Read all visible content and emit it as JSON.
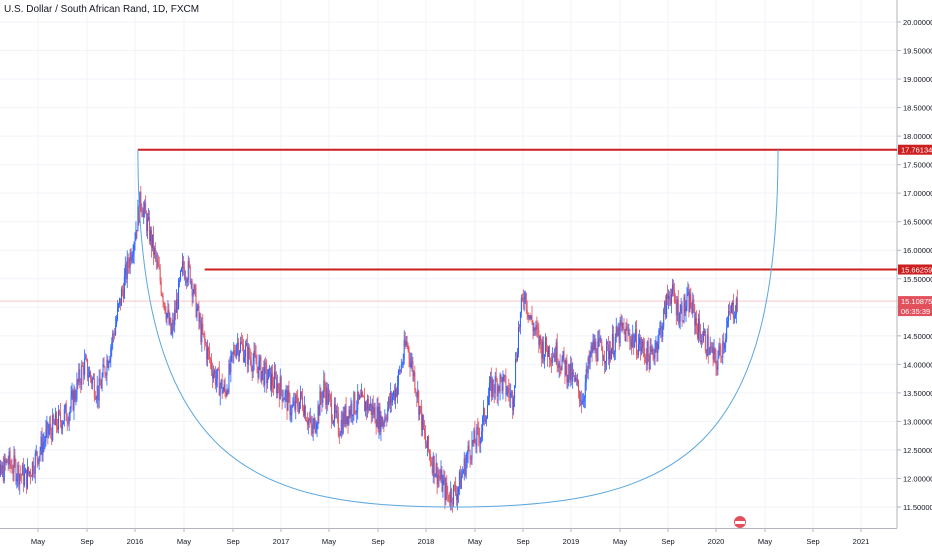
{
  "header": {
    "symbol_title": "U.S. Dollar / South African Rand, 1D, FXCM"
  },
  "chart_data": {
    "type": "candlestick",
    "title": "U.S. Dollar / South African Rand, 1D, FXCM",
    "x_ticks": [
      "May",
      "Sep",
      "2016",
      "May",
      "Sep",
      "2017",
      "May",
      "Sep",
      "2018",
      "May",
      "Sep",
      "2019",
      "May",
      "Sep",
      "2020",
      "May",
      "Sep",
      "2021"
    ],
    "y_ticks": [
      "20.00000",
      "19.50000",
      "19.00000",
      "18.50000",
      "18.00000",
      "17.50000",
      "17.00000",
      "16.50000",
      "16.00000",
      "15.50000",
      "15.00000",
      "14.50000",
      "14.00000",
      "13.50000",
      "13.00000",
      "12.50000",
      "12.00000",
      "11.50000"
    ],
    "y_values": [
      20.0,
      19.5,
      19.0,
      18.5,
      18.0,
      17.5,
      17.0,
      16.5,
      16.0,
      15.5,
      15.0,
      14.5,
      14.0,
      13.5,
      13.0,
      12.5,
      12.0,
      11.5
    ],
    "ylim": [
      11.25,
      20.25
    ],
    "price_path": [
      {
        "t": 2015.0,
        "v": 11.6
      },
      {
        "t": 2015.12,
        "v": 12.3
      },
      {
        "t": 2015.25,
        "v": 12.0
      },
      {
        "t": 2015.4,
        "v": 12.8
      },
      {
        "t": 2015.55,
        "v": 13.2
      },
      {
        "t": 2015.65,
        "v": 14.0
      },
      {
        "t": 2015.75,
        "v": 13.5
      },
      {
        "t": 2015.85,
        "v": 14.5
      },
      {
        "t": 2015.93,
        "v": 15.5
      },
      {
        "t": 2016.0,
        "v": 16.3
      },
      {
        "t": 2016.04,
        "v": 16.9
      },
      {
        "t": 2016.1,
        "v": 16.3
      },
      {
        "t": 2016.18,
        "v": 15.4
      },
      {
        "t": 2016.25,
        "v": 14.5
      },
      {
        "t": 2016.33,
        "v": 15.7
      },
      {
        "t": 2016.38,
        "v": 15.6
      },
      {
        "t": 2016.45,
        "v": 14.6
      },
      {
        "t": 2016.55,
        "v": 13.8
      },
      {
        "t": 2016.62,
        "v": 13.5
      },
      {
        "t": 2016.7,
        "v": 14.4
      },
      {
        "t": 2016.8,
        "v": 14.1
      },
      {
        "t": 2016.9,
        "v": 13.8
      },
      {
        "t": 2017.0,
        "v": 13.6
      },
      {
        "t": 2017.08,
        "v": 13.2
      },
      {
        "t": 2017.15,
        "v": 13.4
      },
      {
        "t": 2017.22,
        "v": 12.8
      },
      {
        "t": 2017.3,
        "v": 13.6
      },
      {
        "t": 2017.4,
        "v": 12.9
      },
      {
        "t": 2017.5,
        "v": 13.3
      },
      {
        "t": 2017.6,
        "v": 13.3
      },
      {
        "t": 2017.7,
        "v": 13.0
      },
      {
        "t": 2017.8,
        "v": 13.6
      },
      {
        "t": 2017.87,
        "v": 14.4
      },
      {
        "t": 2017.93,
        "v": 13.7
      },
      {
        "t": 2018.0,
        "v": 12.6
      },
      {
        "t": 2018.08,
        "v": 12.1
      },
      {
        "t": 2018.15,
        "v": 11.7
      },
      {
        "t": 2018.22,
        "v": 11.8
      },
      {
        "t": 2018.3,
        "v": 12.5
      },
      {
        "t": 2018.38,
        "v": 12.8
      },
      {
        "t": 2018.45,
        "v": 13.6
      },
      {
        "t": 2018.52,
        "v": 13.7
      },
      {
        "t": 2018.6,
        "v": 13.4
      },
      {
        "t": 2018.64,
        "v": 14.6
      },
      {
        "t": 2018.68,
        "v": 15.3
      },
      {
        "t": 2018.72,
        "v": 14.8
      },
      {
        "t": 2018.8,
        "v": 14.3
      },
      {
        "t": 2018.9,
        "v": 14.2
      },
      {
        "t": 2019.0,
        "v": 13.8
      },
      {
        "t": 2019.08,
        "v": 13.4
      },
      {
        "t": 2019.15,
        "v": 14.3
      },
      {
        "t": 2019.25,
        "v": 14.2
      },
      {
        "t": 2019.35,
        "v": 14.6
      },
      {
        "t": 2019.45,
        "v": 14.4
      },
      {
        "t": 2019.55,
        "v": 14.1
      },
      {
        "t": 2019.62,
        "v": 14.6
      },
      {
        "t": 2019.68,
        "v": 15.3
      },
      {
        "t": 2019.75,
        "v": 14.9
      },
      {
        "t": 2019.82,
        "v": 15.1
      },
      {
        "t": 2019.88,
        "v": 14.6
      },
      {
        "t": 2019.95,
        "v": 14.3
      },
      {
        "t": 2020.0,
        "v": 14.0
      },
      {
        "t": 2020.05,
        "v": 14.4
      },
      {
        "t": 2020.1,
        "v": 14.9
      },
      {
        "t": 2020.15,
        "v": 15.1
      }
    ],
    "markers": {
      "high_start": {
        "t": 2016.02,
        "v": 17.76134
      },
      "second_high": {
        "t": 2016.48,
        "v": 15.66259
      },
      "arc_bottom": {
        "t": 2018.2,
        "v": 11.5
      }
    },
    "lines": [
      {
        "label": "17.76134",
        "value": 17.76134,
        "color": "#cc1f1f"
      },
      {
        "label": "15.66259",
        "value": 15.66259,
        "color": "#cc1f1f"
      }
    ],
    "current_price": {
      "label": "15.10875",
      "value": 15.10875,
      "countdown": "06:35:39",
      "color": "#e2505c"
    },
    "arc_color": "#5ba7de",
    "up_color": "#2962ff",
    "down_color": "#e2505c"
  }
}
